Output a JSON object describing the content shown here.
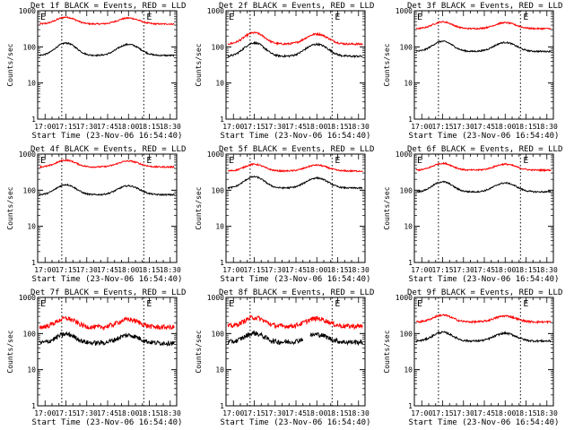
{
  "chart_data": {
    "type": "line",
    "yscale": "log",
    "ylim": [
      1,
      1000
    ],
    "yticks": [
      1,
      10,
      100,
      1000
    ],
    "ylabel": "Counts/sec",
    "xlabel": "Start Time (23-Nov-06 16:54:40)",
    "xlim": [
      "16:54:40",
      "18:34:40"
    ],
    "xticks": [
      "17:00",
      "17:15",
      "17:30",
      "17:45",
      "18:00",
      "18:15",
      "18:30"
    ],
    "marker_label": "E",
    "markers": [
      "17:12",
      "18:11"
    ],
    "series_colors": {
      "events": "#000000",
      "lld": "#ff0000"
    },
    "panels": [
      {
        "title": "Det 1f BLACK = Events, RED = LLD",
        "lld_base": 430,
        "lld_amp": 0.18,
        "ev_base": 58,
        "ev_amp": 0.4,
        "noise": 0.015
      },
      {
        "title": "Det 2f BLACK = Events, RED = LLD",
        "lld_base": 120,
        "lld_amp": 0.35,
        "ev_base": 55,
        "ev_amp": 0.45,
        "noise": 0.02
      },
      {
        "title": "Det 3f BLACK = Events, RED = LLD",
        "lld_base": 320,
        "lld_amp": 0.18,
        "ev_base": 75,
        "ev_amp": 0.3,
        "noise": 0.015
      },
      {
        "title": "Det 4f BLACK = Events, RED = LLD",
        "lld_base": 440,
        "lld_amp": 0.18,
        "ev_base": 75,
        "ev_amp": 0.3,
        "noise": 0.015
      },
      {
        "title": "Det 5f BLACK = Events, RED = LLD",
        "lld_base": 340,
        "lld_amp": 0.18,
        "ev_base": 115,
        "ev_amp": 0.35,
        "noise": 0.015
      },
      {
        "title": "Det 6f BLACK = Events, RED = LLD",
        "lld_base": 360,
        "lld_amp": 0.18,
        "ev_base": 90,
        "ev_amp": 0.3,
        "noise": 0.015
      },
      {
        "title": "Det 7f BLACK = Events, RED = LLD",
        "lld_base": 150,
        "lld_amp": 0.25,
        "ev_base": 55,
        "ev_amp": 0.25,
        "noise": 0.05
      },
      {
        "title": "Det 8f BLACK = Events, RED = LLD",
        "lld_base": 160,
        "lld_amp": 0.25,
        "ev_base": 58,
        "ev_amp": 0.25,
        "noise": 0.05
      },
      {
        "title": "Det 9f BLACK = Events, RED = LLD",
        "lld_base": 210,
        "lld_amp": 0.18,
        "ev_base": 62,
        "ev_amp": 0.25,
        "noise": 0.02
      }
    ]
  }
}
